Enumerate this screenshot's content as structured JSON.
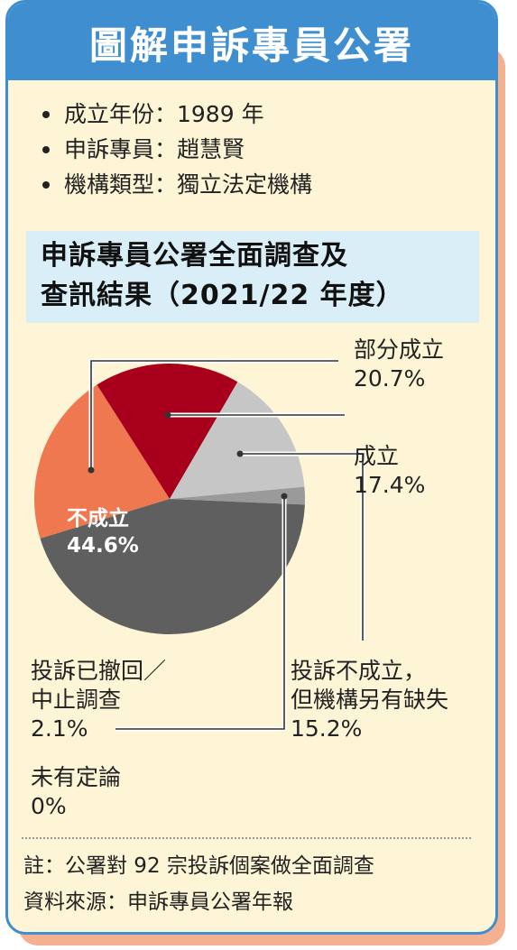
{
  "title": "圖解申訴專員公署",
  "info": [
    "成立年份：1989 年",
    "申訴專員：趙慧賢",
    "機構類型：獨立法定機構"
  ],
  "subhead": {
    "line1": "申訴專員公署全面調查及",
    "line2": "查訊結果（2021/22 年度）"
  },
  "colors": {
    "header": "#3f8fd0",
    "card_bg": "#fdf5d6",
    "shadow": "#f4b08f",
    "subhead_bg": "#d9eef7"
  },
  "chart_data": {
    "type": "pie",
    "slices": [
      {
        "name": "部分成立",
        "value": 20.7,
        "label": "20.7%",
        "color": "#f07850"
      },
      {
        "name": "成立",
        "value": 17.4,
        "label": "17.4%",
        "color": "#a8001c"
      },
      {
        "name": "投訴不成立，但機構另有缺失",
        "name_lines": [
          "投訴不成立，",
          "但機構另有缺失"
        ],
        "value": 15.2,
        "label": "15.2%",
        "color": "#c6c6c6"
      },
      {
        "name": "投訴已撤回／中止調查",
        "name_lines": [
          "投訴已撤回／",
          "中止調查"
        ],
        "value": 2.1,
        "label": "2.1%",
        "color": "#9a9a9a"
      },
      {
        "name": "不成立",
        "value": 44.6,
        "label": "44.6%",
        "color": "#5f5f5f"
      },
      {
        "name": "未有定論",
        "value": 0,
        "label": "0%",
        "color": "#5f5f5f"
      }
    ]
  },
  "notes": [
    "註：公署對 92 宗投訴個案做全面調查",
    "資料來源：申訴專員公署年報"
  ]
}
